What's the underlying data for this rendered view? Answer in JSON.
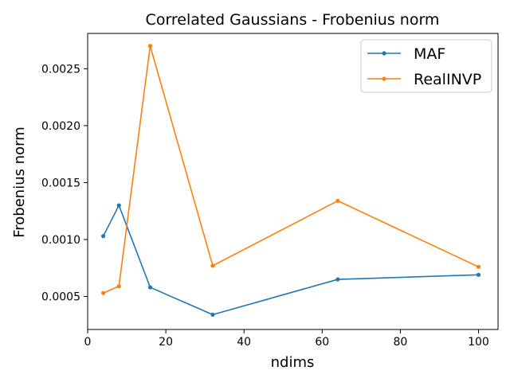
{
  "chart_data": {
    "type": "line",
    "title": "Correlated Gaussians - Frobenius norm",
    "xlabel": "ndims",
    "ylabel": "Frobenius norm",
    "xlim": [
      0,
      105
    ],
    "ylim": [
      0.00021,
      0.00281
    ],
    "xticks": [
      0,
      20,
      40,
      60,
      80,
      100
    ],
    "xtick_labels": [
      "0",
      "20",
      "40",
      "60",
      "80",
      "100"
    ],
    "yticks": [
      0.0005,
      0.001,
      0.0015,
      0.002,
      0.0025
    ],
    "ytick_labels": [
      "0.0005",
      "0.0010",
      "0.0015",
      "0.0020",
      "0.0025"
    ],
    "grid": false,
    "legend_position": "top-right",
    "series": [
      {
        "name": "MAF",
        "color": "#1f77b4",
        "x": [
          4,
          8,
          16,
          32,
          64,
          100
        ],
        "y": [
          0.00103,
          0.0013,
          0.00058,
          0.00034,
          0.00065,
          0.00069
        ]
      },
      {
        "name": "RealINVP",
        "color": "#ff7f0e",
        "x": [
          4,
          8,
          16,
          32,
          64,
          100
        ],
        "y": [
          0.00053,
          0.00059,
          0.0027,
          0.00077,
          0.00134,
          0.00076
        ]
      }
    ]
  }
}
